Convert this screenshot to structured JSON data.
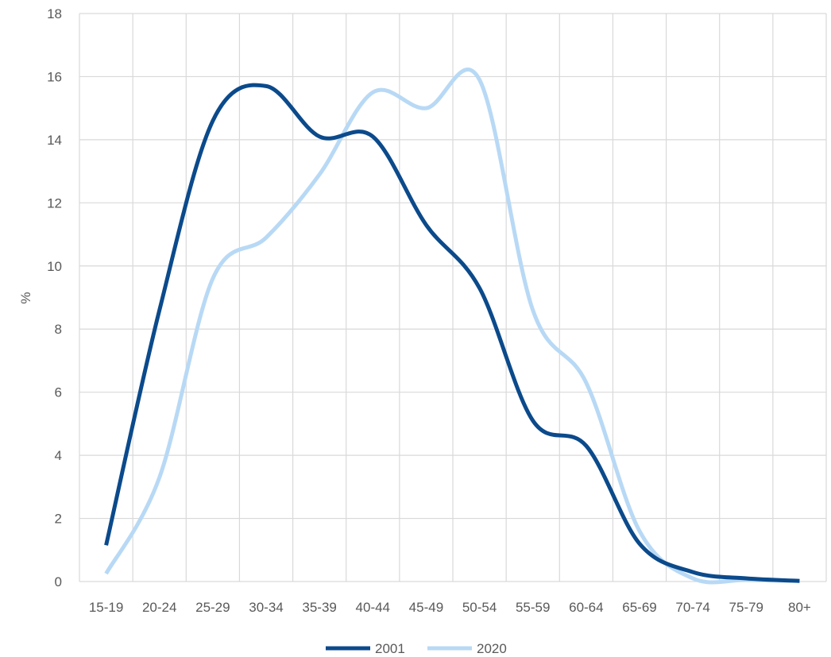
{
  "chart_data": {
    "type": "line",
    "title": "",
    "xlabel": "",
    "ylabel": "%",
    "ylim": [
      0,
      18
    ],
    "yticks": [
      0,
      2,
      4,
      6,
      8,
      10,
      12,
      14,
      16,
      18
    ],
    "categories": [
      "15-19",
      "20-24",
      "25-29",
      "30-34",
      "35-39",
      "40-44",
      "45-49",
      "50-54",
      "55-59",
      "60-64",
      "65-69",
      "70-74",
      "75-79",
      "80+"
    ],
    "grid": true,
    "legend_position": "bottom",
    "series": [
      {
        "name": "2001",
        "color": "#0b4a8b",
        "values": [
          1.15,
          8.6,
          14.6,
          15.7,
          14.1,
          14.1,
          11.3,
          9.3,
          5.1,
          4.3,
          1.2,
          0.3,
          0.1,
          0.02
        ]
      },
      {
        "name": "2020",
        "color": "#b8d9f5",
        "values": [
          0.25,
          3.3,
          9.6,
          10.9,
          12.9,
          15.5,
          15.0,
          15.9,
          8.6,
          6.3,
          1.6,
          0.1,
          0.05,
          0.02
        ]
      }
    ]
  }
}
